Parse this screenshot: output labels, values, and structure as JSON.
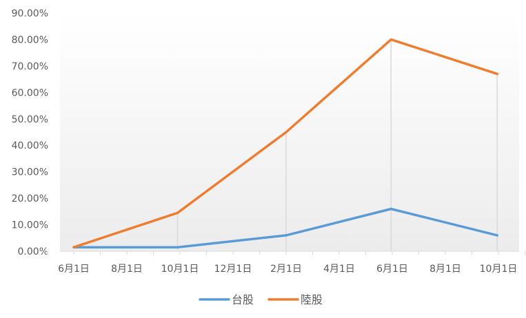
{
  "chart_data": {
    "type": "line",
    "title": "",
    "xlabel": "",
    "ylabel": "",
    "categories": [
      "6月1日",
      "8月1日",
      "10月1日",
      "12月1日",
      "2月1日",
      "4月1日",
      "6月1日",
      "8月1日",
      "10月1日"
    ],
    "yticks": [
      "0.00%",
      "10.00%",
      "20.00%",
      "30.00%",
      "40.00%",
      "50.00%",
      "60.00%",
      "70.00%",
      "80.00%",
      "90.00%"
    ],
    "ylim": [
      0,
      0.9
    ],
    "x_positions": [
      0,
      2.2,
      4.4,
      6.6,
      8.8,
      11,
      13.2,
      15.4,
      17.6
    ],
    "series": [
      {
        "name": "台股",
        "color": "#5b9bd5",
        "points": [
          [
            0,
            0.015
          ],
          [
            2.05,
            0.015
          ],
          [
            4.3,
            0.015
          ],
          [
            8.8,
            0.06
          ],
          [
            13.15,
            0.16
          ],
          [
            17.55,
            0.06
          ]
        ]
      },
      {
        "name": "陸股",
        "color": "#ed7d31",
        "points": [
          [
            0,
            0.015
          ],
          [
            4.3,
            0.145
          ],
          [
            8.8,
            0.45
          ],
          [
            13.15,
            0.8
          ],
          [
            17.55,
            0.67
          ]
        ]
      }
    ],
    "drop_lines_at": [
      4.3,
      8.8,
      13.15,
      17.55
    ],
    "grid": false,
    "legend_position": "bottom"
  }
}
